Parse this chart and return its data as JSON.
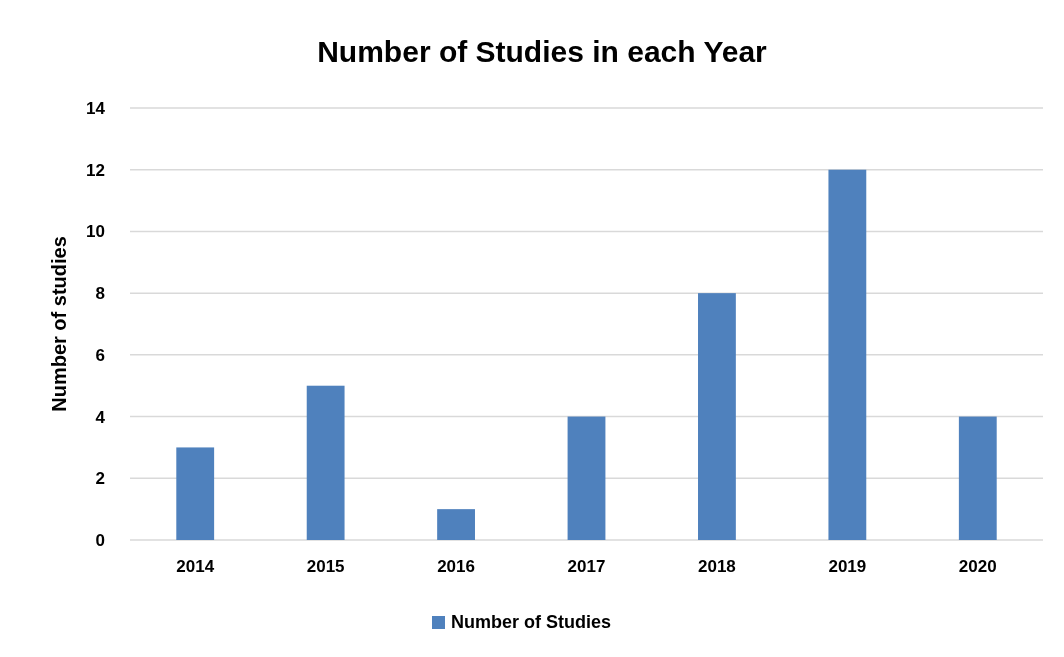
{
  "chart_data": {
    "type": "bar",
    "title": "Number of Studies in each Year",
    "ylabel": "Number of studies",
    "categories": [
      "2014",
      "2015",
      "2016",
      "2017",
      "2018",
      "2019",
      "2020"
    ],
    "series": [
      {
        "name": "Number of Studies",
        "color": "#4f81bd",
        "values": [
          3,
          5,
          1,
          4,
          8,
          12,
          4
        ]
      }
    ],
    "ylim": [
      0,
      14
    ],
    "yticks": [
      0,
      2,
      4,
      6,
      8,
      10,
      12,
      14
    ],
    "grid": "y",
    "legend": "bottom"
  }
}
